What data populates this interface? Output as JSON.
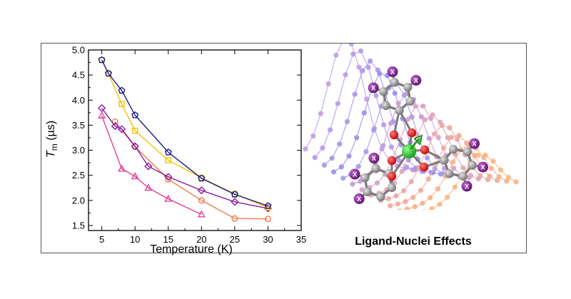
{
  "chart_data": {
    "type": "scatter",
    "title": "",
    "xlabel": "Temperature (K)",
    "ylabel_main": "T",
    "ylabel_sub": "m",
    "ylabel_unit": " (µs)",
    "xlim": [
      3,
      35
    ],
    "ylim": [
      1.4,
      5.0
    ],
    "xticks": [
      "5",
      "10",
      "15",
      "20",
      "25",
      "30",
      "35"
    ],
    "yticks": [
      "1.5",
      "2.0",
      "2.5",
      "3.0",
      "3.5",
      "4.0",
      "4.5",
      "5.0"
    ],
    "grid": false,
    "legend": "none",
    "series": [
      {
        "marker": "pentagon",
        "color": "#1a1a8c",
        "x": [
          5,
          6,
          8,
          10,
          15,
          20,
          25,
          30
        ],
        "y": [
          4.8,
          4.53,
          4.19,
          3.7,
          2.96,
          2.44,
          2.12,
          1.89
        ]
      },
      {
        "marker": "square",
        "color": "#f2c200",
        "x": [
          5,
          6,
          8,
          10,
          15,
          20,
          25,
          30
        ],
        "y": [
          4.8,
          4.53,
          3.92,
          3.39,
          2.8,
          2.45,
          2.13,
          1.86
        ]
      },
      {
        "marker": "diamond",
        "color": "#8b1a9e",
        "x": [
          5,
          7,
          8,
          10,
          12,
          15,
          20,
          25,
          30
        ],
        "y": [
          3.84,
          3.48,
          3.42,
          3.08,
          2.68,
          2.47,
          2.2,
          1.97,
          1.84
        ]
      },
      {
        "marker": "circle",
        "color": "#f07a4a",
        "x": [
          7,
          10,
          15,
          20,
          25,
          30
        ],
        "y": [
          3.57,
          3.07,
          2.42,
          2.0,
          1.64,
          1.63
        ]
      },
      {
        "marker": "triangle",
        "color": "#e3409a",
        "x": [
          5,
          8,
          10,
          12,
          15,
          20
        ],
        "y": [
          3.69,
          2.63,
          2.48,
          2.25,
          2.03,
          1.72
        ]
      }
    ]
  },
  "graphic": {
    "caption": "Ligand-Nuclei Effects",
    "atom_label": "X"
  }
}
